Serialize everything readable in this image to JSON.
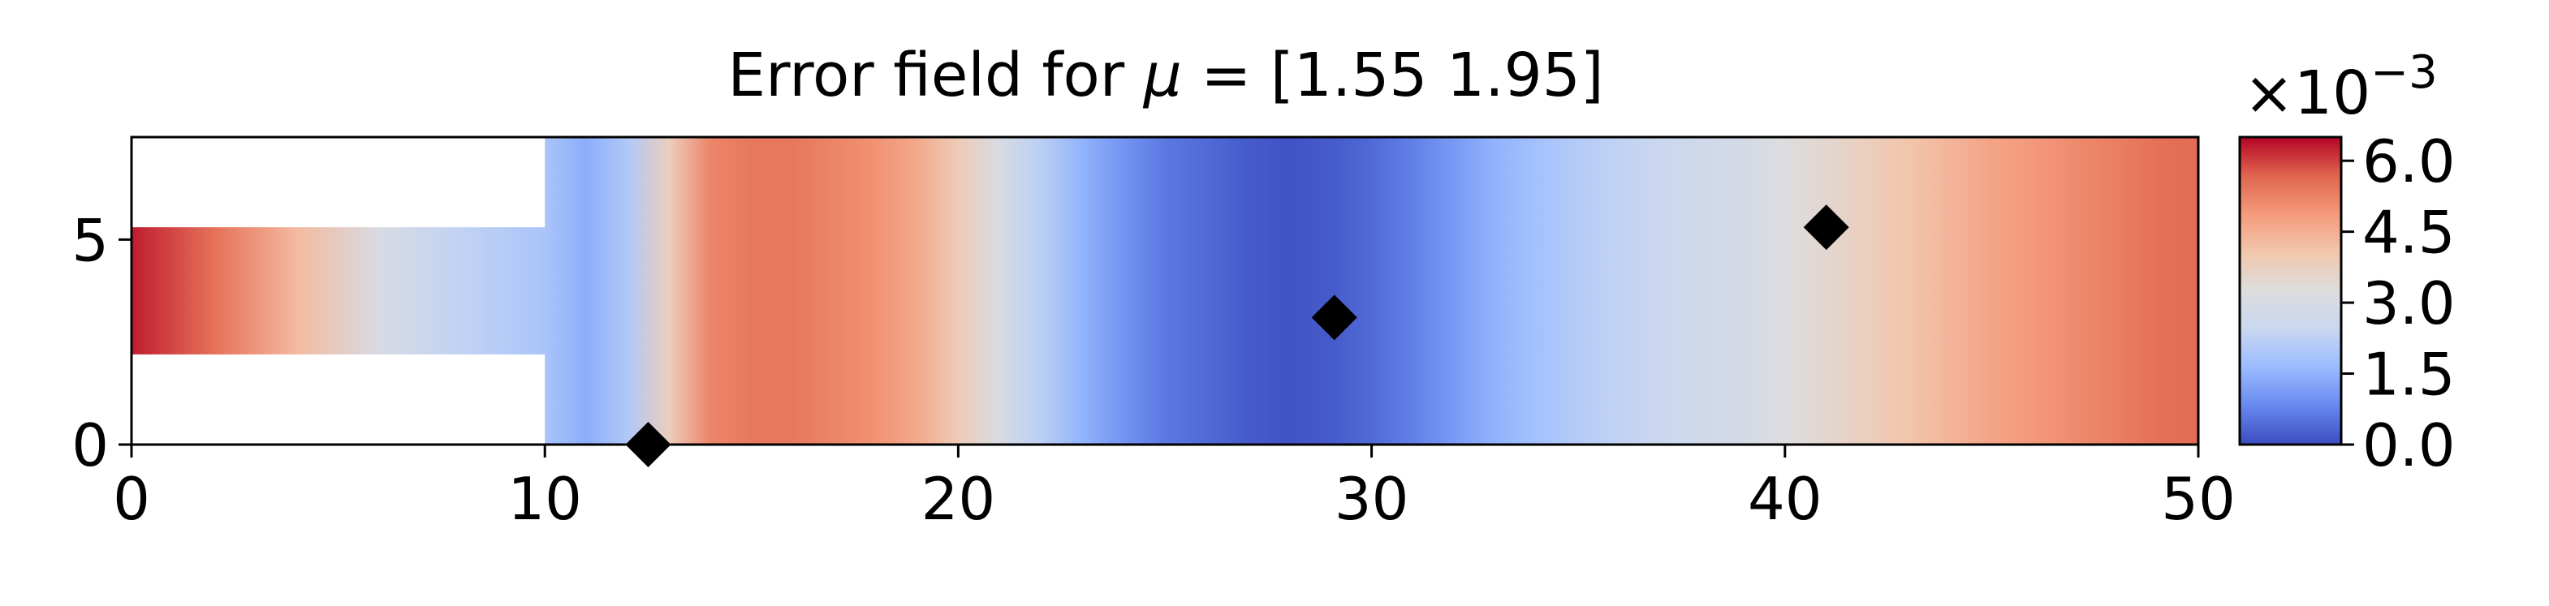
{
  "chart_data": {
    "type": "heatmap",
    "title": "Error field for μ = [1.55 1.95]",
    "title_prefix": "Error field for ",
    "title_symbol": "μ",
    "title_suffix": " = [1.55 1.95]",
    "xlim": [
      0,
      50
    ],
    "ylim": [
      0,
      7.5
    ],
    "x_ticks": [
      0,
      10,
      20,
      30,
      40,
      50
    ],
    "x_tick_labels": [
      "0",
      "10",
      "20",
      "30",
      "40",
      "50"
    ],
    "y_ticks": [
      0,
      5
    ],
    "y_tick_labels": [
      "0",
      "5"
    ],
    "grid": false,
    "colormap": "coolwarm",
    "colormap_stops": [
      "#3b4cc0",
      "#6788ee",
      "#9abbff",
      "#c9d7f0",
      "#dddddd",
      "#f2c7ae",
      "#f49a7b",
      "#e0654f",
      "#b40426"
    ],
    "colorbar": {
      "range": [
        0,
        6.5
      ],
      "ticks": [
        0.0,
        1.5,
        3.0,
        4.5,
        6.0
      ],
      "tick_labels": [
        "0.0",
        "1.5",
        "3.0",
        "4.5",
        "6.0"
      ],
      "scale_base": "×10",
      "scale_exponent": "−3"
    },
    "domain": {
      "inlet": {
        "x": [
          0,
          10
        ],
        "y": [
          2.2,
          5.3
        ]
      },
      "main": {
        "x": [
          10,
          50
        ],
        "y": [
          0,
          7.5
        ]
      }
    },
    "error_profile_x": [
      0,
      2,
      4,
      6,
      8,
      10,
      11,
      12,
      13,
      14,
      15,
      16,
      17,
      18,
      19,
      20,
      21,
      22,
      23,
      24,
      25,
      26,
      27,
      28,
      29,
      30,
      31,
      32,
      33,
      34,
      35,
      36,
      37,
      38,
      39,
      40,
      41,
      42,
      43,
      44,
      45,
      46,
      47,
      48,
      49,
      50
    ],
    "error_profile_value": [
      6.3,
      5.5,
      4.3,
      3.0,
      2.3,
      1.9,
      1.4,
      2.0,
      3.8,
      5.2,
      5.4,
      5.4,
      5.2,
      5.0,
      4.6,
      3.9,
      3.0,
      2.2,
      1.5,
      1.0,
      0.6,
      0.4,
      0.2,
      0.1,
      0.2,
      0.4,
      0.7,
      1.1,
      1.5,
      1.8,
      2.1,
      2.3,
      2.5,
      2.7,
      2.9,
      3.2,
      3.5,
      3.8,
      4.1,
      4.4,
      4.7,
      4.9,
      5.1,
      5.3,
      5.5,
      5.6
    ],
    "markers": [
      {
        "x": 12.5,
        "y": 0.0
      },
      {
        "x": 29.1,
        "y": 3.1
      },
      {
        "x": 41.0,
        "y": 5.3
      }
    ]
  }
}
